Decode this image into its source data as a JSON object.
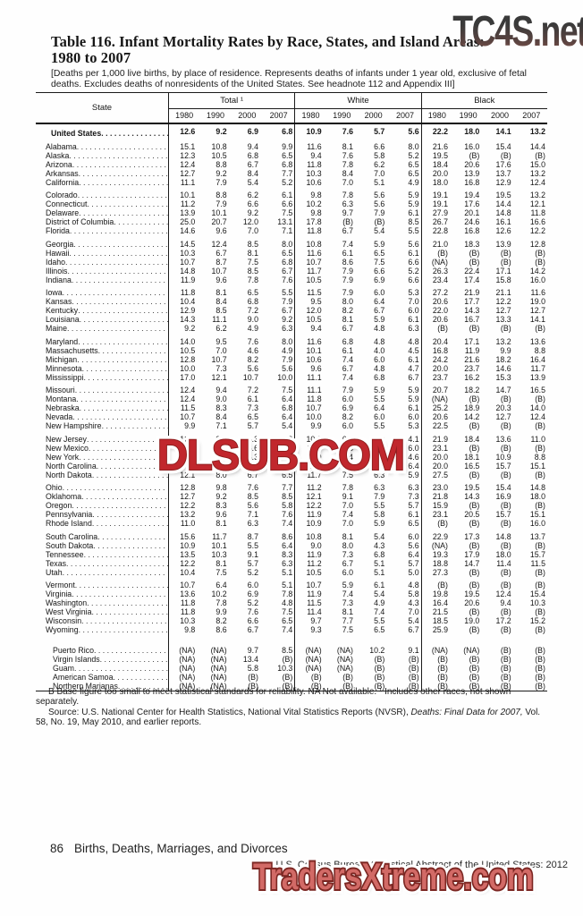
{
  "watermarks": {
    "top": "TC4S.net",
    "middle": "DLSUB.COM",
    "bottom": "TradersXtreme.com"
  },
  "title": {
    "line1": "Table 116. Infant Mortality Rates by Race, States, and Island Areas:",
    "line2": "1980 to 2007"
  },
  "headnote": "[Deaths per 1,000 live births, by place of residence. Represents deaths of infants under 1 year old, exclusive of fetal deaths. Excludes deaths of nonresidents of the United States. See headnote 112 and Appendix III]",
  "table": {
    "state_header": "State",
    "groups": [
      "Total ¹",
      "White",
      "Black"
    ],
    "years": [
      "1980",
      "1990",
      "2000",
      "2007"
    ],
    "us_row": {
      "label": "United States",
      "values": [
        "12.6",
        "9.2",
        "6.9",
        "6.8",
        "10.9",
        "7.6",
        "5.7",
        "5.6",
        "22.2",
        "18.0",
        "14.1",
        "13.2"
      ]
    },
    "rows": [
      {
        "label": "Alabama",
        "gap": 1,
        "values": [
          "15.1",
          "10.8",
          "9.4",
          "9.9",
          "11.6",
          "8.1",
          "6.6",
          "8.0",
          "21.6",
          "16.0",
          "15.4",
          "14.4"
        ]
      },
      {
        "label": "Alaska",
        "values": [
          "12.3",
          "10.5",
          "6.8",
          "6.5",
          "9.4",
          "7.6",
          "5.8",
          "5.2",
          "19.5",
          "(B)",
          "(B)",
          "(B)"
        ]
      },
      {
        "label": "Arizona",
        "values": [
          "12.4",
          "8.8",
          "6.7",
          "6.8",
          "11.8",
          "7.8",
          "6.2",
          "6.5",
          "18.4",
          "20.6",
          "17.6",
          "15.0"
        ]
      },
      {
        "label": "Arkansas",
        "values": [
          "12.7",
          "9.2",
          "8.4",
          "7.7",
          "10.3",
          "8.4",
          "7.0",
          "6.5",
          "20.0",
          "13.9",
          "13.7",
          "13.2"
        ]
      },
      {
        "label": "California",
        "values": [
          "11.1",
          "7.9",
          "5.4",
          "5.2",
          "10.6",
          "7.0",
          "5.1",
          "4.9",
          "18.0",
          "16.8",
          "12.9",
          "12.4"
        ]
      },
      {
        "label": "Colorado",
        "gap": 1,
        "values": [
          "10.1",
          "8.8",
          "6.2",
          "6.1",
          "9.8",
          "7.8",
          "5.6",
          "5.9",
          "19.1",
          "19.4",
          "19.5",
          "13.2"
        ]
      },
      {
        "label": "Connecticut",
        "values": [
          "11.2",
          "7.9",
          "6.6",
          "6.6",
          "10.2",
          "6.3",
          "5.6",
          "5.9",
          "19.1",
          "17.6",
          "14.4",
          "12.1"
        ]
      },
      {
        "label": "Delaware",
        "values": [
          "13.9",
          "10.1",
          "9.2",
          "7.5",
          "9.8",
          "9.7",
          "7.9",
          "6.1",
          "27.9",
          "20.1",
          "14.8",
          "11.8"
        ]
      },
      {
        "label": "District of Columbia",
        "values": [
          "25.0",
          "20.7",
          "12.0",
          "13.1",
          "17.8",
          "(B)",
          "(B)",
          "8.5",
          "26.7",
          "24.6",
          "16.1",
          "16.6"
        ]
      },
      {
        "label": "Florida",
        "values": [
          "14.6",
          "9.6",
          "7.0",
          "7.1",
          "11.8",
          "6.7",
          "5.4",
          "5.5",
          "22.8",
          "16.8",
          "12.6",
          "12.2"
        ]
      },
      {
        "label": "Georgia",
        "gap": 1,
        "values": [
          "14.5",
          "12.4",
          "8.5",
          "8.0",
          "10.8",
          "7.4",
          "5.9",
          "5.6",
          "21.0",
          "18.3",
          "13.9",
          "12.8"
        ]
      },
      {
        "label": "Hawaii",
        "values": [
          "10.3",
          "6.7",
          "8.1",
          "6.5",
          "11.6",
          "6.1",
          "6.5",
          "6.1",
          "(B)",
          "(B)",
          "(B)",
          "(B)"
        ]
      },
      {
        "label": "Idaho",
        "values": [
          "10.7",
          "8.7",
          "7.5",
          "6.8",
          "10.7",
          "8.6",
          "7.5",
          "6.6",
          "(NA)",
          "(B)",
          "(B)",
          "(B)"
        ]
      },
      {
        "label": "Illinois",
        "values": [
          "14.8",
          "10.7",
          "8.5",
          "6.7",
          "11.7",
          "7.9",
          "6.6",
          "5.2",
          "26.3",
          "22.4",
          "17.1",
          "14.2"
        ]
      },
      {
        "label": "Indiana",
        "values": [
          "11.9",
          "9.6",
          "7.8",
          "7.6",
          "10.5",
          "7.9",
          "6.9",
          "6.6",
          "23.4",
          "17.4",
          "15.8",
          "16.0"
        ]
      },
      {
        "label": "Iowa",
        "gap": 1,
        "values": [
          "11.8",
          "8.1",
          "6.5",
          "5.5",
          "11.5",
          "7.9",
          "6.0",
          "5.3",
          "27.2",
          "21.9",
          "21.1",
          "11.6"
        ]
      },
      {
        "label": "Kansas",
        "values": [
          "10.4",
          "8.4",
          "6.8",
          "7.9",
          "9.5",
          "8.0",
          "6.4",
          "7.0",
          "20.6",
          "17.7",
          "12.2",
          "19.0"
        ]
      },
      {
        "label": "Kentucky",
        "values": [
          "12.9",
          "8.5",
          "7.2",
          "6.7",
          "12.0",
          "8.2",
          "6.7",
          "6.0",
          "22.0",
          "14.3",
          "12.7",
          "12.7"
        ]
      },
      {
        "label": "Louisiana",
        "values": [
          "14.3",
          "11.1",
          "9.0",
          "9.2",
          "10.5",
          "8.1",
          "5.9",
          "6.1",
          "20.6",
          "16.7",
          "13.3",
          "14.1"
        ]
      },
      {
        "label": "Maine",
        "values": [
          "9.2",
          "6.2",
          "4.9",
          "6.3",
          "9.4",
          "6.7",
          "4.8",
          "6.3",
          "(B)",
          "(B)",
          "(B)",
          "(B)"
        ]
      },
      {
        "label": "Maryland",
        "gap": 1,
        "values": [
          "14.0",
          "9.5",
          "7.6",
          "8.0",
          "11.6",
          "6.8",
          "4.8",
          "4.8",
          "20.4",
          "17.1",
          "13.2",
          "13.6"
        ]
      },
      {
        "label": "Massachusetts",
        "values": [
          "10.5",
          "7.0",
          "4.6",
          "4.9",
          "10.1",
          "6.1",
          "4.0",
          "4.5",
          "16.8",
          "11.9",
          "9.9",
          "8.8"
        ]
      },
      {
        "label": "Michigan",
        "values": [
          "12.8",
          "10.7",
          "8.2",
          "7.9",
          "10.6",
          "7.4",
          "6.0",
          "6.1",
          "24.2",
          "21.6",
          "18.2",
          "16.4"
        ]
      },
      {
        "label": "Minnesota",
        "values": [
          "10.0",
          "7.3",
          "5.6",
          "5.6",
          "9.6",
          "6.7",
          "4.8",
          "4.7",
          "20.0",
          "23.7",
          "14.6",
          "11.7"
        ]
      },
      {
        "label": "Mississippi",
        "values": [
          "17.0",
          "12.1",
          "10.7",
          "10.0",
          "11.1",
          "7.4",
          "6.8",
          "6.7",
          "23.7",
          "16.2",
          "15.3",
          "13.9"
        ]
      },
      {
        "label": "Missouri",
        "gap": 1,
        "values": [
          "12.4",
          "9.4",
          "7.2",
          "7.5",
          "11.1",
          "7.9",
          "5.9",
          "5.9",
          "20.7",
          "18.2",
          "14.7",
          "16.5"
        ]
      },
      {
        "label": "Montana",
        "values": [
          "12.4",
          "9.0",
          "6.1",
          "6.4",
          "11.8",
          "6.0",
          "5.5",
          "5.9",
          "(NA)",
          "(B)",
          "(B)",
          "(B)"
        ]
      },
      {
        "label": "Nebraska",
        "values": [
          "11.5",
          "8.3",
          "7.3",
          "6.8",
          "10.7",
          "6.9",
          "6.4",
          "6.1",
          "25.2",
          "18.9",
          "20.3",
          "14.0"
        ]
      },
      {
        "label": "Nevada",
        "values": [
          "10.7",
          "8.4",
          "6.5",
          "6.4",
          "10.0",
          "8.2",
          "6.0",
          "6.0",
          "20.6",
          "14.2",
          "12.7",
          "12.4"
        ]
      },
      {
        "label": "New Hampshire",
        "values": [
          "9.9",
          "7.1",
          "5.7",
          "5.4",
          "9.9",
          "6.0",
          "5.5",
          "5.3",
          "22.5",
          "(B)",
          "(B)",
          "(B)"
        ]
      },
      {
        "label": "New Jersey",
        "gap": 1,
        "values": [
          "12.5",
          "9.0",
          "6.3",
          "5.2",
          "10.3",
          "6.4",
          "5.0",
          "4.1",
          "21.9",
          "18.4",
          "13.6",
          "11.0"
        ]
      },
      {
        "label": "New Mexico",
        "values": [
          "11.5",
          "9.0",
          "6.6",
          "6.3",
          "11.3",
          "7.6",
          "6.3",
          "6.0",
          "23.1",
          "(B)",
          "(B)",
          "(B)"
        ]
      },
      {
        "label": "New York",
        "values": [
          "12.5",
          "9.6",
          "6.3",
          "5.5",
          "10.9",
          "7.4",
          "5.1",
          "4.6",
          "20.0",
          "18.1",
          "10.9",
          "8.8"
        ]
      },
      {
        "label": "North Carolina",
        "values": [
          "14.5",
          "10.6",
          "8.6",
          "8.5",
          "11.5",
          "7.9",
          "6.2",
          "6.4",
          "20.0",
          "16.5",
          "15.7",
          "15.1"
        ]
      },
      {
        "label": "North Dakota",
        "values": [
          "12.1",
          "8.0",
          "6.7",
          "6.5",
          "11.7",
          "7.5",
          "6.3",
          "5.9",
          "27.5",
          "(B)",
          "(B)",
          "(B)"
        ]
      },
      {
        "label": "Ohio",
        "gap": 1,
        "values": [
          "12.8",
          "9.8",
          "7.6",
          "7.7",
          "11.2",
          "7.8",
          "6.3",
          "6.3",
          "23.0",
          "19.5",
          "15.4",
          "14.8"
        ]
      },
      {
        "label": "Oklahoma",
        "values": [
          "12.7",
          "9.2",
          "8.5",
          "8.5",
          "12.1",
          "9.1",
          "7.9",
          "7.3",
          "21.8",
          "14.3",
          "16.9",
          "18.0"
        ]
      },
      {
        "label": "Oregon",
        "values": [
          "12.2",
          "8.3",
          "5.6",
          "5.8",
          "12.2",
          "7.0",
          "5.5",
          "5.7",
          "15.9",
          "(B)",
          "(B)",
          "(B)"
        ]
      },
      {
        "label": "Pennsylvania",
        "values": [
          "13.2",
          "9.6",
          "7.1",
          "7.6",
          "11.9",
          "7.4",
          "5.8",
          "6.1",
          "23.1",
          "20.5",
          "15.7",
          "15.1"
        ]
      },
      {
        "label": "Rhode Island",
        "values": [
          "11.0",
          "8.1",
          "6.3",
          "7.4",
          "10.9",
          "7.0",
          "5.9",
          "6.5",
          "(B)",
          "(B)",
          "(B)",
          "16.0"
        ]
      },
      {
        "label": "South Carolina",
        "gap": 1,
        "values": [
          "15.6",
          "11.7",
          "8.7",
          "8.6",
          "10.8",
          "8.1",
          "5.4",
          "6.0",
          "22.9",
          "17.3",
          "14.8",
          "13.7"
        ]
      },
      {
        "label": "South Dakota",
        "values": [
          "10.9",
          "10.1",
          "5.5",
          "6.4",
          "9.0",
          "8.0",
          "4.3",
          "5.6",
          "(NA)",
          "(B)",
          "(B)",
          "(B)"
        ]
      },
      {
        "label": "Tennessee",
        "values": [
          "13.5",
          "10.3",
          "9.1",
          "8.3",
          "11.9",
          "7.3",
          "6.8",
          "6.4",
          "19.3",
          "17.9",
          "18.0",
          "15.7"
        ]
      },
      {
        "label": "Texas",
        "values": [
          "12.2",
          "8.1",
          "5.7",
          "6.3",
          "11.2",
          "6.7",
          "5.1",
          "5.7",
          "18.8",
          "14.7",
          "11.4",
          "11.5"
        ]
      },
      {
        "label": "Utah",
        "values": [
          "10.4",
          "7.5",
          "5.2",
          "5.1",
          "10.5",
          "6.0",
          "5.1",
          "5.0",
          "27.3",
          "(B)",
          "(B)",
          "(B)"
        ]
      },
      {
        "label": "Vermont",
        "gap": 1,
        "values": [
          "10.7",
          "6.4",
          "6.0",
          "5.1",
          "10.7",
          "5.9",
          "6.1",
          "4.8",
          "(B)",
          "(B)",
          "(B)",
          "(B)"
        ]
      },
      {
        "label": "Virginia",
        "values": [
          "13.6",
          "10.2",
          "6.9",
          "7.8",
          "11.9",
          "7.4",
          "5.4",
          "5.8",
          "19.8",
          "19.5",
          "12.4",
          "15.4"
        ]
      },
      {
        "label": "Washington",
        "values": [
          "11.8",
          "7.8",
          "5.2",
          "4.8",
          "11.5",
          "7.3",
          "4.9",
          "4.3",
          "16.4",
          "20.6",
          "9.4",
          "10.3"
        ]
      },
      {
        "label": "West Virginia",
        "values": [
          "11.8",
          "9.9",
          "7.6",
          "7.5",
          "11.4",
          "8.1",
          "7.4",
          "7.0",
          "21.5",
          "(B)",
          "(B)",
          "(B)"
        ]
      },
      {
        "label": "Wisconsin",
        "values": [
          "10.3",
          "8.2",
          "6.6",
          "6.5",
          "9.7",
          "7.7",
          "5.5",
          "5.4",
          "18.5",
          "19.0",
          "17.2",
          "15.2"
        ]
      },
      {
        "label": "Wyoming",
        "values": [
          "9.8",
          "8.6",
          "6.7",
          "7.4",
          "9.3",
          "7.5",
          "6.5",
          "6.7",
          "25.9",
          "(B)",
          "(B)",
          "(B)"
        ]
      },
      {
        "label": "Puerto Rico",
        "gap": 2,
        "indent": true,
        "values": [
          "(NA)",
          "(NA)",
          "9.7",
          "8.5",
          "(NA)",
          "(NA)",
          "10.2",
          "9.1",
          "(NA)",
          "(NA)",
          "(B)",
          "(B)"
        ]
      },
      {
        "label": "Virgin Islands",
        "indent": true,
        "values": [
          "(NA)",
          "(NA)",
          "13.4",
          "(B)",
          "(NA)",
          "(NA)",
          "(B)",
          "(B)",
          "(B)",
          "(B)",
          "(B)",
          "(B)"
        ]
      },
      {
        "label": "Guam",
        "indent": true,
        "values": [
          "(NA)",
          "(NA)",
          "5.8",
          "10.3",
          "(NA)",
          "(NA)",
          "(B)",
          "(B)",
          "(B)",
          "(B)",
          "(B)",
          "(B)"
        ]
      },
      {
        "label": "American Samoa",
        "indent": true,
        "values": [
          "(NA)",
          "(NA)",
          "(B)",
          "(B)",
          "(B)",
          "(B)",
          "(B)",
          "(B)",
          "(B)",
          "(B)",
          "(B)",
          "(B)"
        ]
      },
      {
        "label": "Northern Marianas",
        "indent": true,
        "values": [
          "(NA)",
          "(NA)",
          "(B)",
          "(B)",
          "(B)",
          "(B)",
          "(B)",
          "(B)",
          "(B)",
          "(B)",
          "(B)",
          "(B)"
        ]
      }
    ]
  },
  "footnotes": {
    "line1": "B Base figure too small to meet statistical standards for reliability. NA Not available. ¹ Includes other races, not shown separately.",
    "source_p1": "Source: U.S. National Center for Health Statistics, National Vital Statistics Reports (NVSR), ",
    "source_i1": "Deaths: Final Data for 2007,",
    "source_p2": " Vol. 58, No. 19, May 2010, and earlier reports."
  },
  "footer": {
    "page": "86",
    "section": "Births, Deaths, Marriages, and Divorces",
    "credit": "U.S. Census Bureau, Statistical Abstract of the United States: 2012"
  }
}
